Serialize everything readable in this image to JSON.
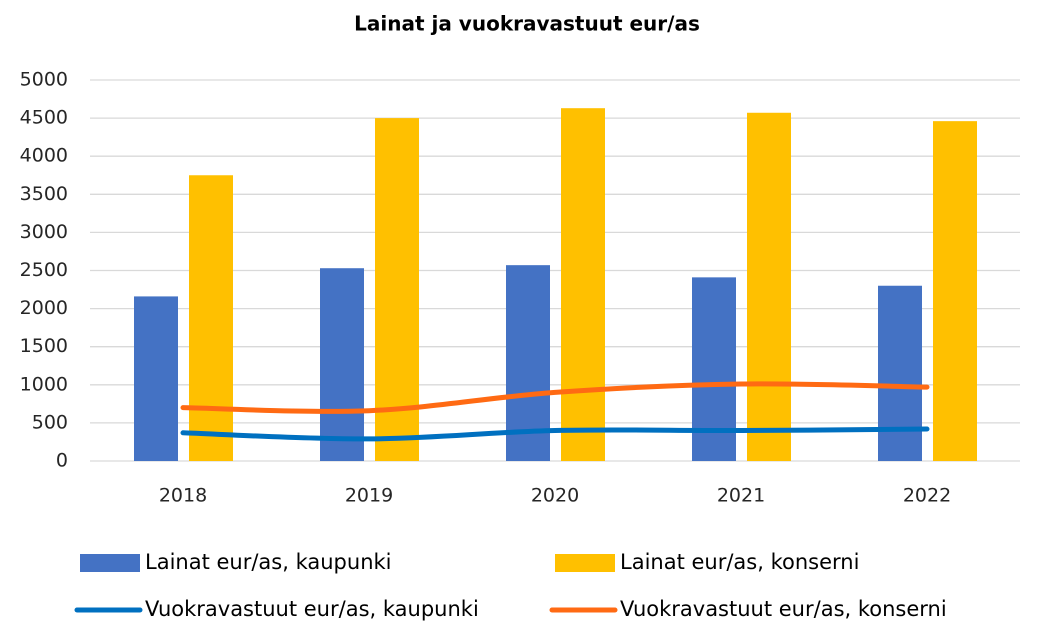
{
  "chart_data": {
    "type": "bar",
    "title": "Lainat ja vuokravastuut eur/as",
    "categories": [
      "2018",
      "2019",
      "2020",
      "2021",
      "2022"
    ],
    "series": [
      {
        "name": "Lainat eur/as, kaupunki",
        "type": "bar",
        "color": "#4472c4",
        "values": [
          2160,
          2530,
          2570,
          2410,
          2300
        ]
      },
      {
        "name": "Lainat eur/as, konserni",
        "type": "bar",
        "color": "#ffc000",
        "values": [
          3750,
          4500,
          4630,
          4570,
          4460
        ]
      },
      {
        "name": "Vuokravastuut eur/as, kaupunki",
        "type": "line",
        "color": "#0070c0",
        "values": [
          370,
          290,
          400,
          400,
          420
        ]
      },
      {
        "name": "Vuokravastuut eur/as, konserni",
        "type": "line",
        "color": "#ff6a13",
        "values": [
          700,
          660,
          900,
          1010,
          970
        ]
      }
    ],
    "ylim": [
      0,
      5000
    ],
    "yticks": [
      0,
      500,
      1000,
      1500,
      2000,
      2500,
      3000,
      3500,
      4000,
      4500,
      5000
    ],
    "grid": true,
    "legend": "bottom"
  }
}
